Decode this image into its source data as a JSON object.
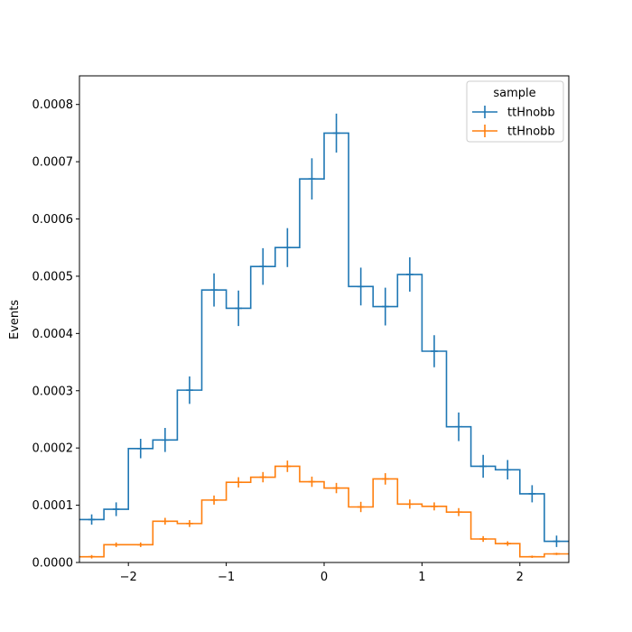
{
  "chart_data": {
    "type": "histogram-step",
    "title": "",
    "xlabel": "",
    "ylabel": "Events",
    "xlim": [
      -2.5,
      2.5
    ],
    "ylim": [
      0,
      0.00085
    ],
    "xticks": [
      -2,
      -1,
      0,
      1,
      2
    ],
    "xtick_labels": [
      "−2",
      "−1",
      "0",
      "1",
      "2"
    ],
    "yticks": [
      0,
      0.0001,
      0.0002,
      0.0003,
      0.0004,
      0.0005,
      0.0006,
      0.0007,
      0.0008
    ],
    "ytick_labels": [
      "0.0000",
      "0.0001",
      "0.0002",
      "0.0003",
      "0.0004",
      "0.0005",
      "0.0006",
      "0.0007",
      "0.0008"
    ],
    "bin_edges": [
      -2.5,
      -2.25,
      -2.0,
      -1.75,
      -1.5,
      -1.25,
      -1.0,
      -0.75,
      -0.5,
      -0.25,
      0.0,
      0.25,
      0.5,
      0.75,
      1.0,
      1.25,
      1.5,
      1.75,
      2.0,
      2.25,
      2.5
    ],
    "bin_edges_note_hidden": "",
    "legend_title": "sample",
    "legend_location": "top-right",
    "series": [
      {
        "name": "ttHnobb",
        "color": "#1f77b4",
        "values": [
          7.5e-05,
          9.3e-05,
          0.000199,
          0.000214,
          0.000301,
          0.000476,
          0.000444,
          0.000517,
          0.00055,
          0.00067,
          0.00075,
          0.000482,
          0.000447,
          0.000503,
          0.000369,
          0.000237,
          0.000168,
          0.000162,
          0.00012,
          3.7e-05
        ],
        "errors": [
          9e-06,
          1.2e-05,
          1.7e-05,
          2.1e-05,
          2.4e-05,
          2.9e-05,
          3.1e-05,
          3.2e-05,
          3.4e-05,
          3.6e-05,
          3.4e-05,
          3.3e-05,
          3.3e-05,
          3e-05,
          2.8e-05,
          2.5e-05,
          2e-05,
          1.7e-05,
          1.5e-05,
          1e-05
        ]
      },
      {
        "name": "ttHnobb",
        "color": "#ff7f0e",
        "values": [
          1e-05,
          3.1e-05,
          3.1e-05,
          7.2e-05,
          6.8e-05,
          0.000109,
          0.00014,
          0.000149,
          0.000168,
          0.000141,
          0.00013,
          9.7e-05,
          0.000146,
          0.000102,
          9.8e-05,
          8.8e-05,
          4.1e-05,
          3.3e-05,
          1e-05,
          1.5e-05
        ],
        "errors": [
          3e-06,
          4e-06,
          4e-06,
          6e-06,
          6e-06,
          8e-06,
          9e-06,
          9e-06,
          1e-05,
          9e-06,
          9e-06,
          9e-06,
          1e-05,
          8e-06,
          7e-06,
          7e-06,
          5e-06,
          4e-06,
          2e-06,
          2e-06
        ]
      }
    ]
  }
}
